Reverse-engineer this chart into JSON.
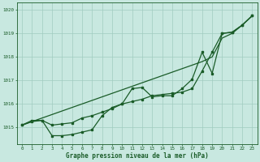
{
  "title": "Graphe pression niveau de la mer (hPa)",
  "bg_color": "#c8e8e0",
  "grid_color": "#a0ccc0",
  "line_color": "#1a5c28",
  "ylim": [
    1014.3,
    1020.3
  ],
  "yticks": [
    1015,
    1016,
    1017,
    1018,
    1019,
    1020
  ],
  "xlim": [
    -0.5,
    23.5
  ],
  "x_ticks": [
    0,
    1,
    2,
    3,
    4,
    5,
    6,
    7,
    8,
    9,
    10,
    11,
    12,
    13,
    14,
    15,
    16,
    17,
    18,
    19,
    20,
    21,
    22,
    23
  ],
  "line_straight_y": [
    1015.1,
    1015.25,
    1015.4,
    1015.55,
    1015.7,
    1015.85,
    1016.0,
    1016.15,
    1016.3,
    1016.45,
    1016.6,
    1016.75,
    1016.9,
    1017.05,
    1017.2,
    1017.35,
    1017.5,
    1017.65,
    1017.8,
    1018.0,
    1018.8,
    1019.0,
    1019.35,
    1019.75
  ],
  "line_wavy_y": [
    1015.1,
    1015.25,
    1015.3,
    1014.65,
    1014.65,
    1014.7,
    1014.8,
    1014.9,
    1015.5,
    1015.85,
    1016.0,
    1016.65,
    1016.7,
    1016.3,
    1016.35,
    1016.35,
    1016.65,
    1017.05,
    1018.2,
    1017.3,
    1019.0,
    1019.05,
    1019.35,
    1019.75
  ],
  "line_mid_y": [
    1015.1,
    1015.3,
    1015.3,
    1015.1,
    1015.15,
    1015.2,
    1015.4,
    1015.5,
    1015.65,
    1015.8,
    1016.0,
    1016.1,
    1016.2,
    1016.35,
    1016.4,
    1016.45,
    1016.5,
    1016.65,
    1017.4,
    1018.2,
    1019.0,
    1019.05,
    1019.35,
    1019.75
  ]
}
